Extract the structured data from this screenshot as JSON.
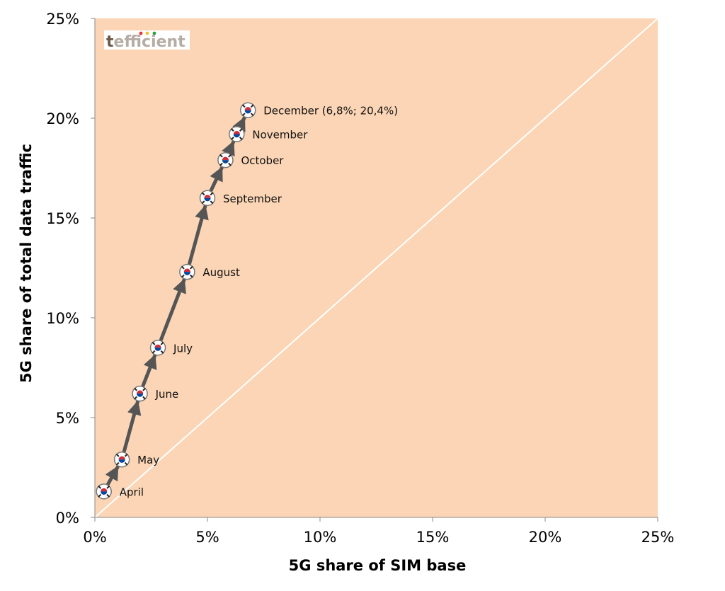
{
  "logo": {
    "text_first": "t",
    "text_rest": "efficient",
    "dot_colors": [
      "#e8352b",
      "#f3c02b",
      "#2aa148"
    ],
    "text_color_first": "#6b5a47",
    "text_color_rest": "#b5aca4"
  },
  "colors": {
    "plot_bg": "#fbd5b5",
    "line": "#555555",
    "diagonal": "#ffffff",
    "axis": "#888888"
  },
  "chart_data": {
    "type": "scatter",
    "title": "",
    "xlabel": "5G share of SIM base",
    "ylabel": "5G share of total data traffic",
    "xlim": [
      0,
      25
    ],
    "ylim": [
      0,
      25
    ],
    "x_ticks": [
      "0%",
      "5%",
      "10%",
      "15%",
      "20%",
      "25%"
    ],
    "y_ticks": [
      "0%",
      "5%",
      "10%",
      "15%",
      "20%",
      "25%"
    ],
    "grid": false,
    "reference_line": "y = x",
    "points": [
      {
        "label": "April",
        "x": 0.4,
        "y": 1.3
      },
      {
        "label": "May",
        "x": 1.2,
        "y": 2.9
      },
      {
        "label": "June",
        "x": 2.0,
        "y": 6.2
      },
      {
        "label": "July",
        "x": 2.8,
        "y": 8.5
      },
      {
        "label": "August",
        "x": 4.1,
        "y": 12.3
      },
      {
        "label": "September",
        "x": 5.0,
        "y": 16.0
      },
      {
        "label": "October",
        "x": 5.8,
        "y": 17.9
      },
      {
        "label": "November",
        "x": 6.3,
        "y": 19.2
      },
      {
        "label": "December (6,8%; 20,4%)",
        "x": 6.8,
        "y": 20.4
      }
    ]
  }
}
